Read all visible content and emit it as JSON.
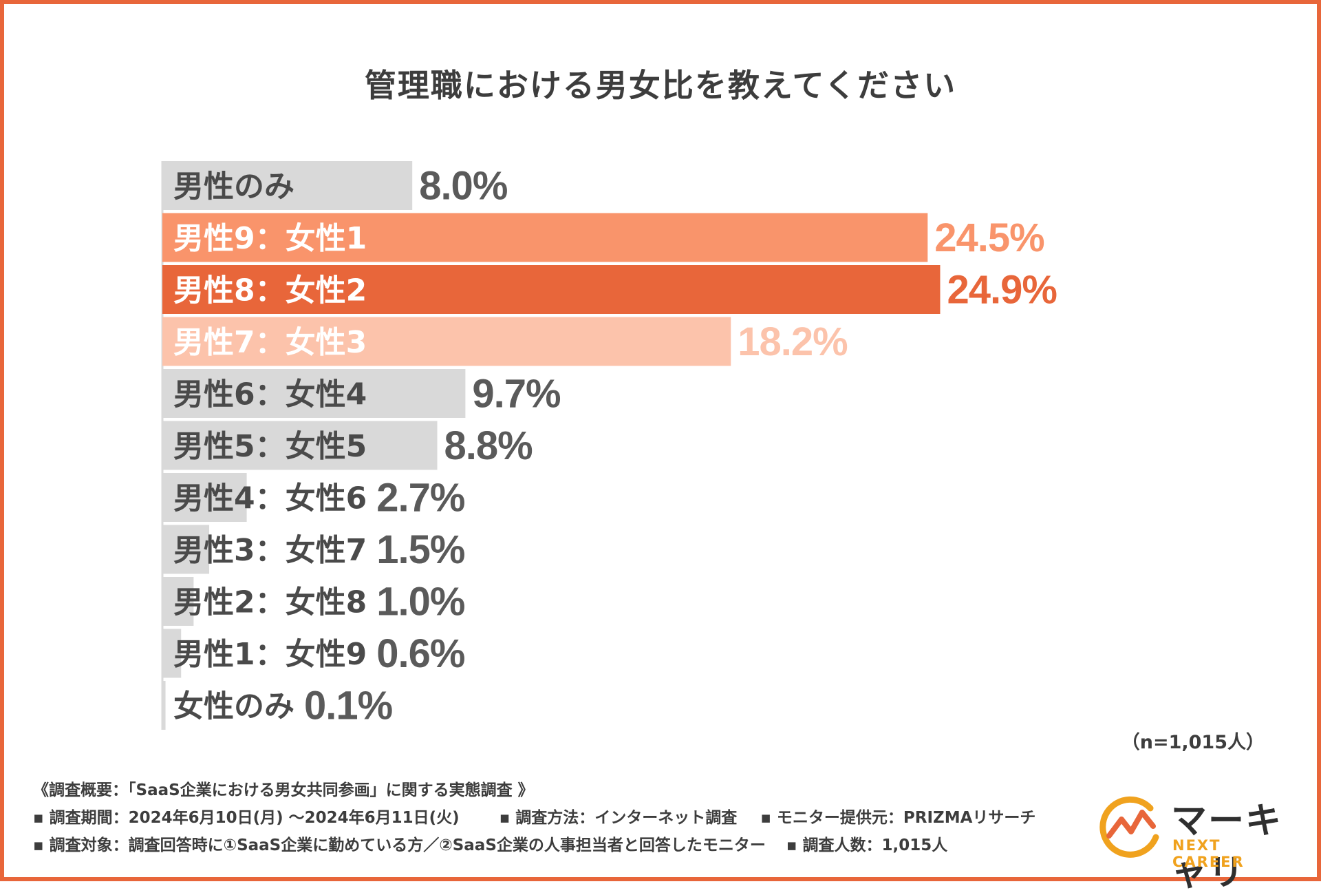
{
  "chart_data": {
    "type": "bar",
    "orientation": "horizontal",
    "title": "管理職における男女比を教えてください",
    "categories": [
      "男性のみ",
      "男性9：女性1",
      "男性8：女性2",
      "男性7：女性3",
      "男性6：女性4",
      "男性5：女性5",
      "男性4：女性6",
      "男性3：女性7",
      "男性2：女性8",
      "男性1：女性9",
      "女性のみ"
    ],
    "values": [
      8.0,
      24.5,
      24.9,
      18.2,
      9.7,
      8.8,
      2.7,
      1.5,
      1.0,
      0.6,
      0.1
    ],
    "value_labels": [
      "8.0%",
      "24.5%",
      "24.9%",
      "18.2%",
      "9.7%",
      "8.8%",
      "2.7%",
      "1.5%",
      "1.0%",
      "0.6%",
      "0.1%"
    ],
    "bar_colors": [
      "#d9d9d9",
      "#f9946b",
      "#e8663a",
      "#fcc3ab",
      "#d9d9d9",
      "#d9d9d9",
      "#d9d9d9",
      "#d9d9d9",
      "#d9d9d9",
      "#d9d9d9",
      "#d9d9d9"
    ],
    "label_colors": [
      "#5a5a5a",
      "#f9946b",
      "#e8663a",
      "#fcc3ab",
      "#5a5a5a",
      "#5a5a5a",
      "#5a5a5a",
      "#5a5a5a",
      "#5a5a5a",
      "#5a5a5a",
      "#5a5a5a"
    ],
    "category_text_colors": [
      "#4a4a4a",
      "#ffffff",
      "#ffffff",
      "#ffffff",
      "#4a4a4a",
      "#4a4a4a",
      "#4a4a4a",
      "#4a4a4a",
      "#4a4a4a",
      "#4a4a4a",
      "#4a4a4a"
    ],
    "xlim": [
      0,
      25
    ],
    "xlabel": "",
    "ylabel": "",
    "grid": false
  },
  "sample_size": "（n=1,015人）",
  "notes": {
    "header": "《調査概要：「SaaS企業における男女共同参画」に関する実態調査 》",
    "period": "▪ 調査期間：2024年6月10日(月) ～2024年6月11日(火)",
    "method": "▪ 調査方法：インターネット調査",
    "provider": "▪ モニター提供元：PRIZMAリサーチ",
    "target": "▪ 調査対象：調査回答時に①SaaS企業に勤めている方／②SaaS企業の人事担当者と回答したモニター",
    "count": "▪ 調査人数：1,015人"
  },
  "logo": {
    "brand": "マーキャリ",
    "sub": "NEXT CAREER",
    "accent_color": "#f0a21e",
    "chart_color": "#e8663a"
  }
}
